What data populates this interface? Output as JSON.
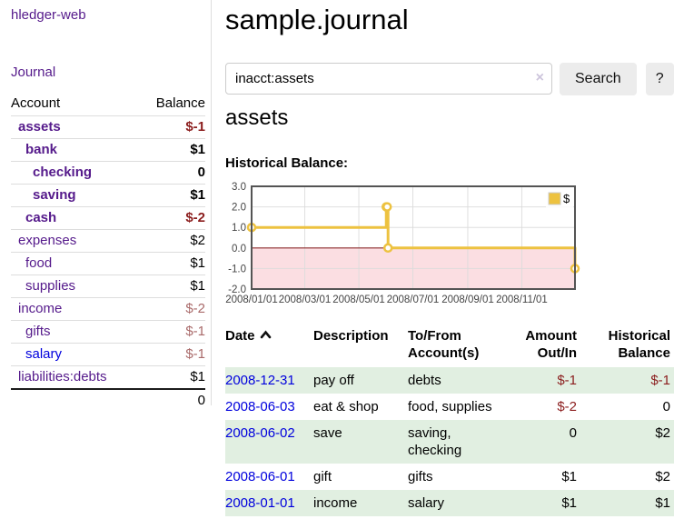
{
  "app_title": "hledger-web",
  "colors": {
    "link-visited": "#551a8b",
    "link-unvisited": "#0000dd",
    "negative-strong": "#8b1d1d",
    "negative-soft": "#a96a6a",
    "row-stripe": "#e1efe1",
    "button-bg": "#ececec",
    "divider": "#dddddd",
    "clear-icon": "#cdc5dc"
  },
  "sidebar": {
    "journal_label": "Journal",
    "headers": {
      "account": "Account",
      "balance": "Balance"
    },
    "rows": [
      {
        "name": "assets",
        "depth": 1,
        "emphasis": true,
        "balance": "$-1",
        "balance_tone": "negative-strong"
      },
      {
        "name": "bank",
        "depth": 2,
        "emphasis": true,
        "balance": "$1",
        "balance_tone": "default"
      },
      {
        "name": "checking",
        "depth": 3,
        "emphasis": true,
        "balance": "0",
        "balance_tone": "default"
      },
      {
        "name": "saving",
        "depth": 3,
        "emphasis": true,
        "balance": "$1",
        "balance_tone": "default"
      },
      {
        "name": "cash",
        "depth": 2,
        "emphasis": true,
        "balance": "$-2",
        "balance_tone": "negative-strong"
      },
      {
        "name": "expenses",
        "depth": 1,
        "emphasis": false,
        "balance": "$2",
        "balance_tone": "default"
      },
      {
        "name": "food",
        "depth": 2,
        "emphasis": false,
        "balance": "$1",
        "balance_tone": "default"
      },
      {
        "name": "supplies",
        "depth": 2,
        "emphasis": false,
        "balance": "$1",
        "balance_tone": "default"
      },
      {
        "name": "income",
        "depth": 1,
        "emphasis": false,
        "balance": "$-2",
        "balance_tone": "negative-soft"
      },
      {
        "name": "gifts",
        "depth": 2,
        "emphasis": false,
        "balance": "$-1",
        "balance_tone": "negative-soft"
      },
      {
        "name": "salary",
        "depth": 2,
        "emphasis": false,
        "link_tone": "unvisited",
        "balance": "$-1",
        "balance_tone": "negative-soft"
      },
      {
        "name": "liabilities:debts",
        "depth": 1,
        "emphasis": false,
        "balance": "$1",
        "balance_tone": "default"
      }
    ],
    "total": "0"
  },
  "main": {
    "title": "sample.journal",
    "search": {
      "value": "inacct:assets",
      "clear_icon": "×",
      "button_label": "Search",
      "help_label": "?"
    },
    "account_title": "assets"
  },
  "chart_data": {
    "type": "line",
    "title": "Historical Balance:",
    "steps": true,
    "series": [
      {
        "name": "$",
        "color": "#edc240",
        "points": [
          [
            "2008-01-01",
            1
          ],
          [
            "2008-06-01",
            2
          ],
          [
            "2008-06-02",
            2
          ],
          [
            "2008-06-03",
            0
          ],
          [
            "2008-12-31",
            -1
          ]
        ]
      }
    ],
    "xlim": [
      "2008-01-01",
      "2008-12-31"
    ],
    "ylim": [
      -2,
      3
    ],
    "xticks": [
      "2008/01/01",
      "2008/03/01",
      "2008/05/01",
      "2008/07/01",
      "2008/09/01",
      "2008/11/01"
    ],
    "yticks": [
      3.0,
      2.0,
      1.0,
      0.0,
      -1.0,
      -2.0
    ],
    "grid": true,
    "legend_position": "top-right",
    "colors": {
      "negative_region": "#fbdee2",
      "grid": "#dcdcdc",
      "zero_line": "#8b2b2b",
      "plot_border": "#545454"
    }
  },
  "register": {
    "columns": [
      "Date",
      "Description",
      "To/From Account(s)",
      "Amount Out/In",
      "Historical Balance"
    ],
    "sort": {
      "column": "Date",
      "direction": "ascending"
    },
    "rows": [
      {
        "date": "2008-12-31",
        "description": "pay off",
        "accounts": "debts",
        "amount": "$-1",
        "amount_tone": "negative",
        "balance": "$-1",
        "balance_tone": "negative"
      },
      {
        "date": "2008-06-03",
        "description": "eat & shop",
        "accounts": "food, supplies",
        "amount": "$-2",
        "amount_tone": "negative",
        "balance": "0",
        "balance_tone": "default"
      },
      {
        "date": "2008-06-02",
        "description": "save",
        "accounts": "saving, checking",
        "amount": "0",
        "amount_tone": "default",
        "balance": "$2",
        "balance_tone": "default"
      },
      {
        "date": "2008-06-01",
        "description": "gift",
        "accounts": "gifts",
        "amount": "$1",
        "amount_tone": "default",
        "balance": "$2",
        "balance_tone": "default"
      },
      {
        "date": "2008-01-01",
        "description": "income",
        "accounts": "salary",
        "amount": "$1",
        "amount_tone": "default",
        "balance": "$1",
        "balance_tone": "default"
      }
    ]
  }
}
